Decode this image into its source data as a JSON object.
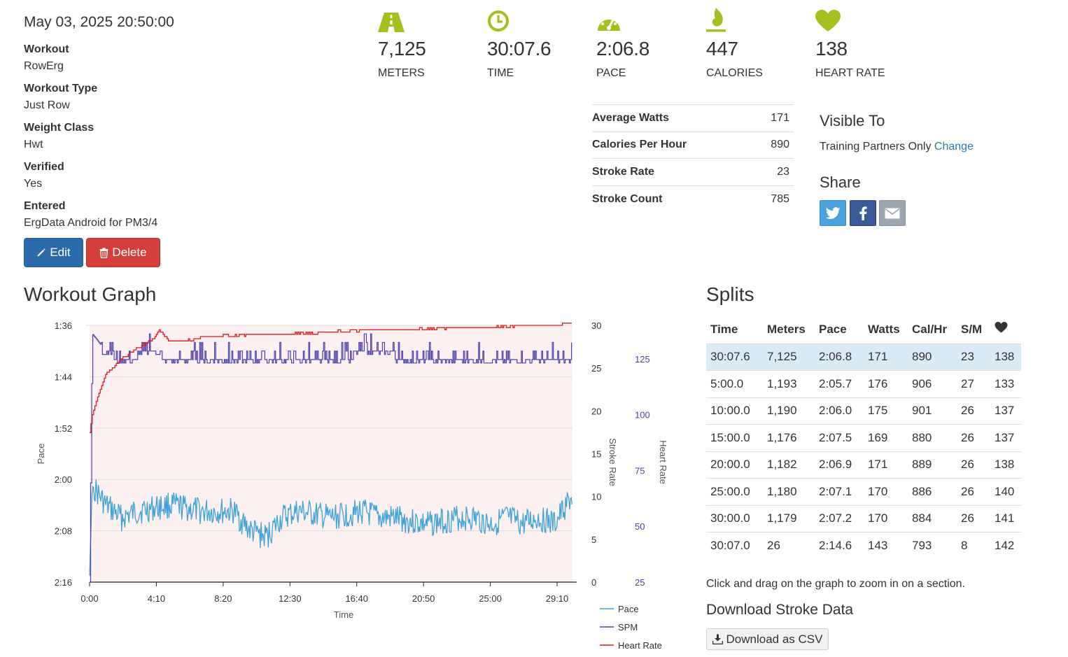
{
  "workout": {
    "date": "May 03, 2025 20:50:00",
    "details": [
      {
        "label": "Workout",
        "value": "RowErg"
      },
      {
        "label": "Workout Type",
        "value": "Just Row"
      },
      {
        "label": "Weight Class",
        "value": "Hwt"
      },
      {
        "label": "Verified",
        "value": "Yes"
      },
      {
        "label": "Entered",
        "value": "ErgData Android for PM3/4"
      }
    ],
    "edit_label": "Edit",
    "delete_label": "Delete"
  },
  "stats": [
    {
      "icon": "road-icon",
      "value": "7,125",
      "label": "Meters"
    },
    {
      "icon": "clock-icon",
      "value": "30:07.6",
      "label": "Time"
    },
    {
      "icon": "speedometer-icon",
      "value": "2:06.8",
      "label": "Pace"
    },
    {
      "icon": "flame-icon",
      "value": "447",
      "label": "Calories"
    },
    {
      "icon": "heart-icon",
      "value": "138",
      "label": "Heart Rate"
    }
  ],
  "accent_color": "#a6be1e",
  "metrics": [
    {
      "label": "Average Watts",
      "value": "171"
    },
    {
      "label": "Calories Per Hour",
      "value": "890"
    },
    {
      "label": "Stroke Rate",
      "value": "23"
    },
    {
      "label": "Stroke Count",
      "value": "785"
    }
  ],
  "visibility": {
    "title": "Visible To",
    "text": "Training Partners Only",
    "change_label": "Change"
  },
  "share": {
    "title": "Share",
    "buttons": [
      "twitter-icon",
      "facebook-icon",
      "envelope-icon"
    ]
  },
  "graph": {
    "title": "Workout Graph",
    "hint": "Click and drag on the graph to zoom in on a section."
  },
  "chart_data": {
    "type": "line",
    "xlabel": "Time",
    "x_ticks": [
      "0:00",
      "4:10",
      "8:20",
      "12:30",
      "16:40",
      "20:50",
      "25:00",
      "29:10"
    ],
    "x_range_seconds": [
      0,
      1807.6
    ],
    "y_left": {
      "label": "Pace",
      "ticks": [
        "1:36",
        "1:44",
        "1:52",
        "2:00",
        "2:08",
        "2:16"
      ],
      "range": [
        "1:36",
        "2:16"
      ],
      "inverted": true
    },
    "y_right_1": {
      "label": "Stroke Rate",
      "ticks": [
        "30",
        "25",
        "20",
        "15",
        "10",
        "5",
        "0"
      ],
      "range": [
        0,
        30
      ]
    },
    "y_right_2": {
      "label": "Heart Rate",
      "ticks": [
        "125",
        "100",
        "75",
        "50",
        "25"
      ],
      "range": [
        25,
        140
      ]
    },
    "legend": [
      "Pace",
      "SPM",
      "Heart Rate"
    ],
    "legend_placement": "bottom-right",
    "colors": {
      "pace": "#3ea3d8",
      "spm": "#4b3fb0",
      "heart_rate": "#d91c1c",
      "plot_bg": "#fdf0f1"
    },
    "series": [
      {
        "name": "Pace",
        "unit": "min/500m",
        "x": [
          0,
          10,
          60,
          120,
          180,
          300,
          420,
          540,
          600,
          660,
          720,
          780,
          900,
          1020,
          1080,
          1140,
          1260,
          1380,
          1440,
          1500,
          1560,
          1620,
          1680,
          1740,
          1800
        ],
        "y": [
          "2:15",
          "2:01",
          "2:04",
          "2:06",
          "2:05",
          "2:04",
          "2:05",
          "2:05",
          "2:08",
          "2:09",
          "2:06",
          "2:05",
          "2:06",
          "2:05",
          "2:06",
          "2:06",
          "2:07",
          "2:06",
          "2:06",
          "2:07",
          "2:06",
          "2:07",
          "2:06",
          "2:07",
          "2:03"
        ]
      },
      {
        "name": "SPM",
        "unit": "strokes/min",
        "x": [
          0,
          10,
          60,
          120,
          240,
          300,
          420,
          600,
          720,
          900,
          1080,
          1200,
          1380,
          1500,
          1620,
          1740,
          1800
        ],
        "y": [
          0,
          29,
          27,
          26,
          27,
          26,
          26,
          26,
          26,
          26,
          27,
          26,
          26,
          26,
          26,
          26,
          26
        ]
      },
      {
        "name": "Heart Rate",
        "unit": "bpm",
        "x": [
          0,
          10,
          30,
          60,
          120,
          180,
          240,
          260,
          300,
          360,
          420,
          480,
          600,
          720,
          900,
          1080,
          1200,
          1380,
          1500,
          1620,
          1740,
          1800
        ],
        "y": [
          92,
          100,
          108,
          118,
          125,
          130,
          134,
          138,
          133,
          133,
          135,
          135,
          136,
          136,
          137,
          138,
          138,
          139,
          139,
          140,
          140,
          141
        ]
      }
    ]
  },
  "splits": {
    "title": "Splits",
    "headers": [
      "Time",
      "Meters",
      "Pace",
      "Watts",
      "Cal/Hr",
      "S/M"
    ],
    "heart_header_icon": "heart-icon",
    "summary": [
      "30:07.6",
      "7,125",
      "2:06.8",
      "171",
      "890",
      "23",
      "138"
    ],
    "rows": [
      [
        "5:00.0",
        "1,193",
        "2:05.7",
        "176",
        "906",
        "27",
        "133"
      ],
      [
        "10:00.0",
        "1,190",
        "2:06.0",
        "175",
        "901",
        "26",
        "137"
      ],
      [
        "15:00.0",
        "1,176",
        "2:07.5",
        "169",
        "880",
        "26",
        "137"
      ],
      [
        "20:00.0",
        "1,182",
        "2:06.9",
        "171",
        "889",
        "26",
        "138"
      ],
      [
        "25:00.0",
        "1,180",
        "2:07.1",
        "170",
        "886",
        "26",
        "140"
      ],
      [
        "30:00.0",
        "1,179",
        "2:07.2",
        "170",
        "884",
        "26",
        "141"
      ],
      [
        "30:07.0",
        "26",
        "2:14.6",
        "143",
        "793",
        "8",
        "142"
      ]
    ]
  },
  "download": {
    "title": "Download Stroke Data",
    "button_label": "Download as CSV"
  }
}
